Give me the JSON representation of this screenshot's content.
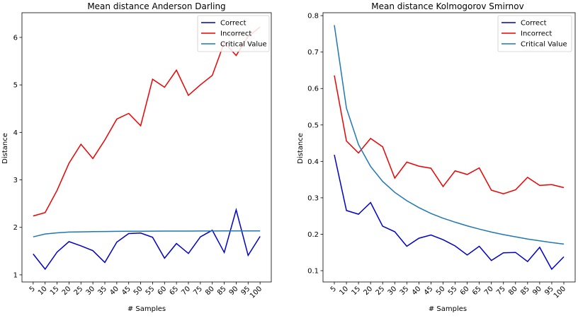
{
  "chart_data": [
    {
      "type": "line",
      "title": "Mean distance Anderson Darling",
      "xlabel": "# Samples",
      "ylabel": "Distance",
      "categories": [
        "5",
        "10",
        "15",
        "20",
        "25",
        "30",
        "35",
        "40",
        "45",
        "50",
        "55",
        "60",
        "65",
        "70",
        "75",
        "80",
        "85",
        "90",
        "95",
        "100"
      ],
      "ylim": [
        0.85,
        6.52
      ],
      "yticks": [
        1,
        2,
        3,
        4,
        5,
        6
      ],
      "legend": "top-right",
      "series": [
        {
          "name": "Correct",
          "color": "#0000cc",
          "values": [
            1.44,
            1.12,
            1.48,
            1.7,
            1.61,
            1.51,
            1.26,
            1.69,
            1.87,
            1.88,
            1.79,
            1.35,
            1.66,
            1.45,
            1.8,
            1.94,
            1.47,
            2.37,
            1.41,
            1.81
          ]
        },
        {
          "name": "Incorrect",
          "color": "#ee0000",
          "values": [
            2.24,
            2.31,
            2.78,
            3.35,
            3.75,
            3.45,
            3.84,
            4.28,
            4.4,
            4.14,
            5.12,
            4.95,
            5.31,
            4.78,
            5.0,
            5.2,
            5.89,
            5.62,
            6.02,
            6.22
          ]
        },
        {
          "name": "Critical Value",
          "color": "#1f77b4",
          "values": [
            1.8,
            1.86,
            1.885,
            1.9,
            1.905,
            1.91,
            1.913,
            1.915,
            1.917,
            1.918,
            1.92,
            1.921,
            1.922,
            1.922,
            1.923,
            1.923,
            1.924,
            1.924,
            1.925,
            1.925
          ]
        }
      ]
    },
    {
      "type": "line",
      "title": "Mean distance Kolmogorov Smirnov",
      "xlabel": "# Samples",
      "ylabel": "Distance",
      "categories": [
        "5",
        "10",
        "15",
        "20",
        "25",
        "30",
        "35",
        "40",
        "45",
        "50",
        "55",
        "60",
        "65",
        "70",
        "75",
        "80",
        "85",
        "90",
        "95",
        "100"
      ],
      "ylim": [
        0.069,
        0.808
      ],
      "yticks": [
        0.1,
        0.2,
        0.3,
        0.4,
        0.5,
        0.6,
        0.7,
        0.8
      ],
      "legend": "top-right",
      "series": [
        {
          "name": "Correct",
          "color": "#0000cc",
          "values": [
            0.418,
            0.265,
            0.255,
            0.287,
            0.222,
            0.207,
            0.167,
            0.189,
            0.198,
            0.185,
            0.168,
            0.143,
            0.167,
            0.128,
            0.149,
            0.15,
            0.125,
            0.164,
            0.104,
            0.138
          ]
        },
        {
          "name": "Incorrect",
          "color": "#ee0000",
          "values": [
            0.636,
            0.456,
            0.423,
            0.463,
            0.44,
            0.354,
            0.398,
            0.387,
            0.381,
            0.331,
            0.374,
            0.364,
            0.382,
            0.321,
            0.311,
            0.322,
            0.356,
            0.334,
            0.336,
            0.328
          ]
        },
        {
          "name": "Critical Value",
          "color": "#1f77b4",
          "values": [
            0.774,
            0.546,
            0.446,
            0.386,
            0.345,
            0.315,
            0.292,
            0.273,
            0.257,
            0.244,
            0.233,
            0.223,
            0.214,
            0.206,
            0.199,
            0.193,
            0.187,
            0.182,
            0.177,
            0.173
          ]
        }
      ]
    }
  ]
}
